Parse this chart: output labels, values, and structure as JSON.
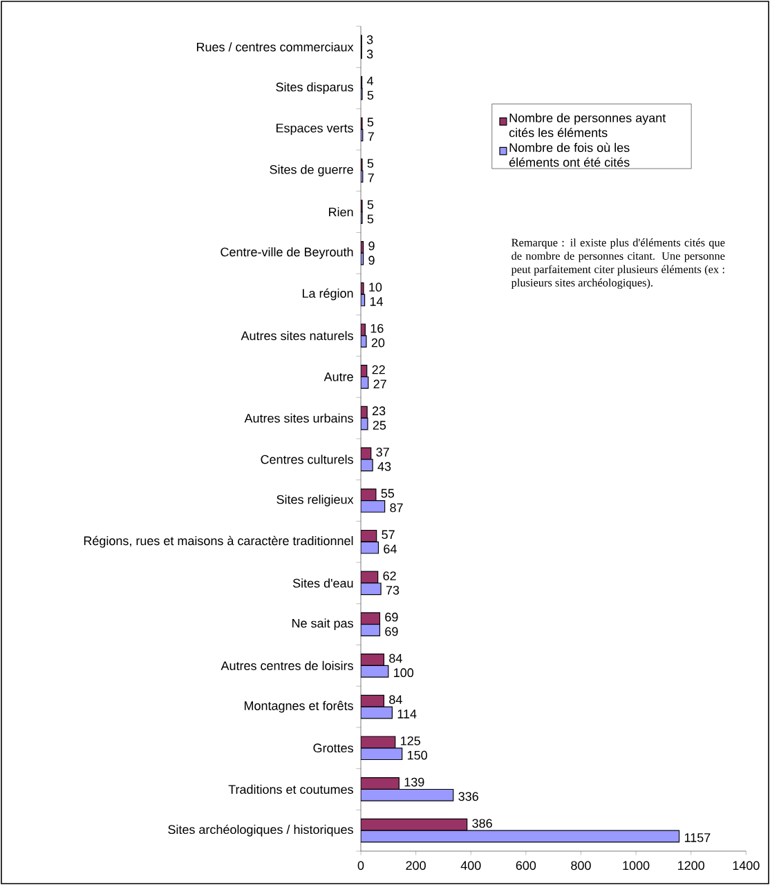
{
  "chart_data": {
    "type": "bar",
    "orientation": "horizontal",
    "categories": [
      "Rues / centres commerciaux",
      "Sites disparus",
      "Espaces verts",
      "Sites de guerre",
      "Rien",
      "Centre-ville de Beyrouth",
      "La région",
      "Autres sites naturels",
      "Autre",
      "Autres sites urbains",
      "Centres culturels",
      "Sites religieux",
      "Régions, rues et maisons à caractère traditionnel",
      "Sites d'eau",
      "Ne sait pas",
      "Autres centres de loisirs",
      "Montagnes et forêts",
      "Grottes",
      "Traditions et coutumes",
      "Sites archéologiques / historiques"
    ],
    "series": [
      {
        "name": "Nombre de personnes ayant cités les éléments",
        "color": "#993366",
        "values": [
          3,
          4,
          5,
          5,
          5,
          9,
          10,
          16,
          22,
          23,
          37,
          55,
          57,
          62,
          69,
          84,
          84,
          125,
          139,
          386
        ]
      },
      {
        "name": "Nombre de fois où les éléments ont été cités",
        "color": "#9999ff",
        "values": [
          3,
          5,
          7,
          7,
          5,
          9,
          14,
          20,
          27,
          25,
          43,
          87,
          64,
          73,
          69,
          100,
          114,
          150,
          336,
          1157
        ]
      }
    ],
    "xlim": [
      0,
      1400
    ],
    "xticks": [
      0,
      200,
      400,
      600,
      800,
      1000,
      1200,
      1400
    ],
    "data_labels": true,
    "legend": "top right",
    "grid": false,
    "annotations": [
      "Remarque : il existe plus d'éléments cités que de nombre de personnes citant. Une personne peut parfaitement citer plusieurs éléments (ex : plusieurs sites archéologiques)."
    ]
  }
}
